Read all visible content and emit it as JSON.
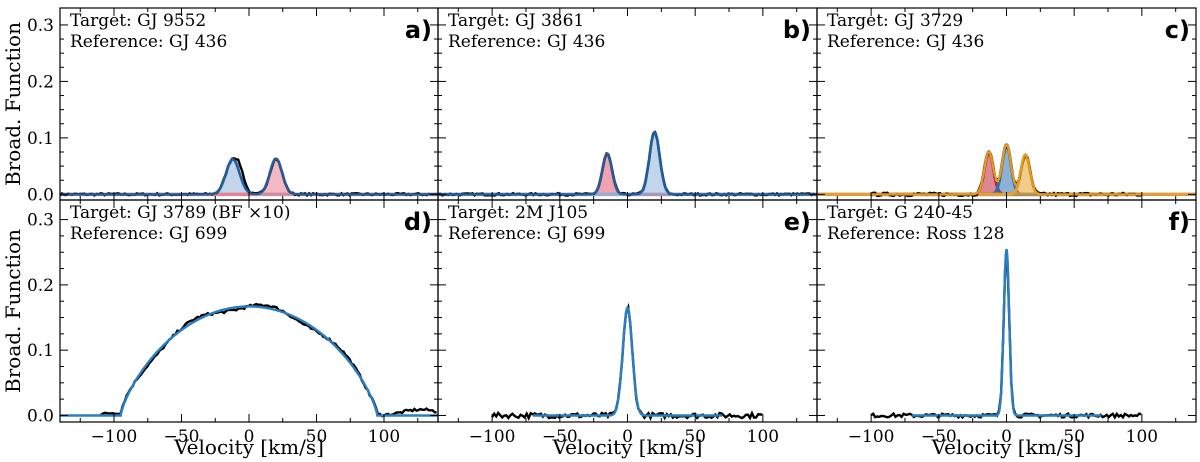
{
  "chart_data": [
    {
      "panel": "a)",
      "type": "line",
      "target": "Target: GJ 9552",
      "reference": "Reference: GJ 436",
      "ylabel": "Broad. Function",
      "xlabel": "",
      "xlim": [
        -140,
        140
      ],
      "ylim": [
        -0.01,
        0.33
      ],
      "x_ticks": [],
      "y_ticks": [
        "0.0",
        "0.1",
        "0.2",
        "0.3"
      ],
      "data_range": [
        -140,
        140
      ],
      "noise": 0.002,
      "components": [
        {
          "center": -12,
          "amp": 0.062,
          "sigma": 5.0,
          "color": "#8fb2d8",
          "fill": true
        },
        {
          "center": 20,
          "amp": 0.063,
          "sigma": 4.5,
          "color": "#e8808f",
          "fill": true
        }
      ],
      "extra_peaks": [
        {
          "center": -6,
          "amp": 0.018,
          "sigma": 3.0
        }
      ],
      "model_color": "#1f5f9c"
    },
    {
      "panel": "b)",
      "type": "line",
      "target": "Target: GJ 3861",
      "reference": "Reference: GJ 436",
      "ylabel": "",
      "xlabel": "",
      "xlim": [
        -140,
        140
      ],
      "ylim": [
        -0.01,
        0.33
      ],
      "x_ticks": [],
      "y_ticks": [],
      "data_range": [
        -140,
        140
      ],
      "noise": 0.002,
      "components": [
        {
          "center": -15,
          "amp": 0.072,
          "sigma": 3.5,
          "color": "#e05a70",
          "fill": true
        },
        {
          "center": 20,
          "amp": 0.11,
          "sigma": 3.8,
          "color": "#8fb2d8",
          "fill": true
        }
      ],
      "extra_peaks": [],
      "model_color": "#1f5f9c"
    },
    {
      "panel": "c)",
      "type": "line",
      "target": "Target: GJ 3729",
      "reference": "Reference: GJ 436",
      "ylabel": "",
      "xlabel": "",
      "xlim": [
        -140,
        140
      ],
      "ylim": [
        -0.01,
        0.33
      ],
      "x_ticks": [],
      "y_ticks": [],
      "data_range": [
        -100,
        100
      ],
      "noise": 0.003,
      "components": [
        {
          "center": -13,
          "amp": 0.075,
          "sigma": 3.3,
          "color": "#c0243a",
          "fill": true
        },
        {
          "center": 0,
          "amp": 0.088,
          "sigma": 3.3,
          "color": "#2f6fb3",
          "fill": true
        },
        {
          "center": 14,
          "amp": 0.07,
          "sigma": 3.3,
          "color": "#e8a22a",
          "fill": true
        }
      ],
      "extra_peaks": [],
      "model_color": "#e39a1f",
      "model_range": [
        -100,
        100
      ]
    },
    {
      "panel": "d)",
      "type": "line",
      "target": "Target: GJ 3789 (BF ×10)",
      "reference": "Reference: GJ 699",
      "ylabel": "Broad. Function",
      "xlabel": "Velocity [km/s]",
      "xlim": [
        -140,
        140
      ],
      "ylim": [
        -0.01,
        0.33
      ],
      "x_ticks": [
        "−100",
        "−50",
        "0",
        "50",
        "100"
      ],
      "x_tick_values": [
        -100,
        -50,
        0,
        50,
        100
      ],
      "y_ticks": [
        "0.0",
        "0.1",
        "0.2",
        "0.3"
      ],
      "data_range": [
        -110,
        140
      ],
      "noise": 0.002,
      "broad": {
        "center": 0,
        "amp": 0.167,
        "halfwidth": 95
      },
      "components": [],
      "extra_peaks": [],
      "model_color": "#2a7fc1",
      "model_range": [
        -140,
        140
      ]
    },
    {
      "panel": "e)",
      "type": "line",
      "target": "Target: 2M J105",
      "reference": "Reference: GJ 699",
      "ylabel": "",
      "xlabel": "Velocity [km/s]",
      "xlim": [
        -140,
        140
      ],
      "ylim": [
        -0.01,
        0.33
      ],
      "x_ticks": [
        "−100",
        "−50",
        "0",
        "50",
        "100"
      ],
      "x_tick_values": [
        -100,
        -50,
        0,
        50,
        100
      ],
      "y_ticks": [],
      "data_range": [
        -100,
        100
      ],
      "noise": 0.004,
      "components": [
        {
          "center": 0,
          "amp": 0.165,
          "sigma": 3.5,
          "color": "#2a7fc1",
          "fill": false
        }
      ],
      "extra_peaks": [],
      "model_color": "#2a7fc1",
      "model_range": [
        -70,
        70
      ]
    },
    {
      "panel": "f)",
      "type": "line",
      "target": "Target: G 240-45",
      "reference": "Reference: Ross 128",
      "ylabel": "",
      "xlabel": "Velocity [km/s]",
      "xlim": [
        -140,
        140
      ],
      "ylim": [
        -0.01,
        0.33
      ],
      "x_ticks": [
        "−100",
        "−50",
        "0",
        "50",
        "100"
      ],
      "x_tick_values": [
        -100,
        -50,
        0,
        50,
        100
      ],
      "y_ticks": [],
      "data_range": [
        -100,
        100
      ],
      "noise": 0.003,
      "components": [
        {
          "center": 0,
          "amp": 0.255,
          "sigma": 2.0,
          "color": "#2a7fc1",
          "fill": false
        }
      ],
      "extra_peaks": [],
      "model_color": "#2a7fc1",
      "model_range": [
        -70,
        70
      ]
    }
  ]
}
